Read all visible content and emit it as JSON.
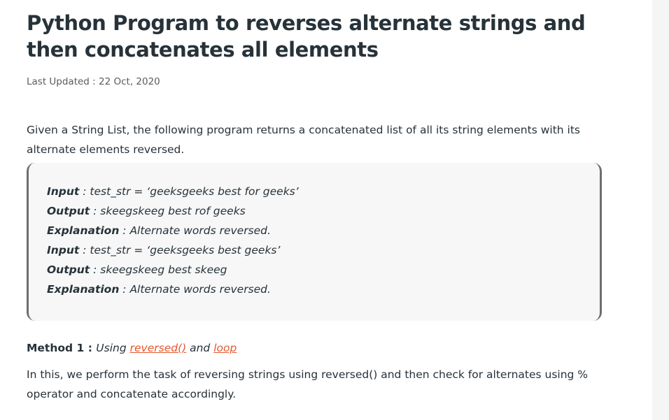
{
  "article": {
    "title": "Python Program to reverses alternate strings and then concatenates all elements",
    "last_updated_label": "Last Updated : ",
    "last_updated_date": "22 Oct, 2020",
    "intro": "Given a String List, the following program returns a concatenated list of all its string elements with its alternate elements reversed."
  },
  "example": {
    "lines": [
      {
        "key": "Input",
        "sep": " : ",
        "value": "test_str = ‘geeksgeeks best for geeks’"
      },
      {
        "key": "Output",
        "sep": " : ",
        "value": "skeegskeeg best rof geeks"
      },
      {
        "key": "Explanation",
        "sep": " : ",
        "value": "Alternate words reversed."
      },
      {
        "key": "Input",
        "sep": " : ",
        "value": "test_str = ‘geeksgeeks best geeks’"
      },
      {
        "key": "Output",
        "sep": " : ",
        "value": "skeegskeeg best skeeg"
      },
      {
        "key": "Explanation",
        "sep": " : ",
        "value": "Alternate words reversed."
      }
    ]
  },
  "method1": {
    "label": "Method 1 : ",
    "using": "Using ",
    "link1": "reversed()",
    "and": " and ",
    "link2": "loop",
    "description": "In this, we perform the task of reversing strings using reversed() and then check for alternates using % operator and concatenate accordingly."
  },
  "colors": {
    "text": "#273239",
    "link": "#e4572e",
    "code_bg": "#f7f7f7",
    "code_border": "#6e6e6e"
  }
}
